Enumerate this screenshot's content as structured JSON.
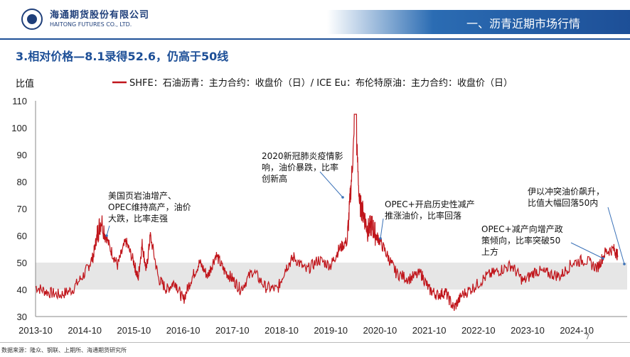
{
  "header": {
    "company_cn": "海通期货股份有限公司",
    "company_en": "HAITONG FUTURES CO., LTD.",
    "section_title": "一、沥青近期市场行情"
  },
  "page_title": "3.相对价格—8.1录得52.6，仍高于50线",
  "footer": {
    "source": "数据来源：隆众、钢联、上期所、海通期货研究所",
    "page_number": "7"
  },
  "colors": {
    "series": "#c0151b",
    "band": "#e6e6e6",
    "brand": "#1d4f97"
  },
  "chart_data": {
    "type": "line",
    "ylabel": "比值",
    "ylim": [
      30,
      110
    ],
    "yticks": [
      30,
      40,
      50,
      60,
      70,
      80,
      90,
      100,
      110
    ],
    "xticks": [
      "2013-10",
      "2014-10",
      "2015-10",
      "2016-10",
      "2017-10",
      "2018-10",
      "2019-10",
      "2020-10",
      "2021-10",
      "2022-10",
      "2023-10",
      "2024-10"
    ],
    "band": [
      40,
      50
    ],
    "grid": false,
    "legend_position": "top",
    "series": [
      {
        "name": "SHFE：石油沥青：主力合约：收盘价（日）/ ICE Eu：布伦特原油：主力合约：收盘价（日）",
        "points": [
          [
            "2013-10",
            41
          ],
          [
            "2014-01",
            39
          ],
          [
            "2014-04",
            38
          ],
          [
            "2014-07",
            40
          ],
          [
            "2014-10",
            46
          ],
          [
            "2014-12",
            52
          ],
          [
            "2015-01",
            60
          ],
          [
            "2015-02",
            66
          ],
          [
            "2015-04",
            56
          ],
          [
            "2015-06",
            49
          ],
          [
            "2015-08",
            58
          ],
          [
            "2015-10",
            50
          ],
          [
            "2015-11",
            44
          ],
          [
            "2015-12",
            57
          ],
          [
            "2016-01",
            47
          ],
          [
            "2016-02",
            60
          ],
          [
            "2016-04",
            44
          ],
          [
            "2016-06",
            40
          ],
          [
            "2016-08",
            43
          ],
          [
            "2016-10",
            36
          ],
          [
            "2016-12",
            44
          ],
          [
            "2017-02",
            50
          ],
          [
            "2017-04",
            45
          ],
          [
            "2017-06",
            53
          ],
          [
            "2017-08",
            47
          ],
          [
            "2017-10",
            44
          ],
          [
            "2017-12",
            40
          ],
          [
            "2018-03",
            47
          ],
          [
            "2018-06",
            41
          ],
          [
            "2018-09",
            40
          ],
          [
            "2018-11",
            48
          ],
          [
            "2019-01",
            52
          ],
          [
            "2019-04",
            47
          ],
          [
            "2019-07",
            51
          ],
          [
            "2019-10",
            49
          ],
          [
            "2019-12",
            55
          ],
          [
            "2020-02",
            58
          ],
          [
            "2020-03",
            80
          ],
          [
            "2020-04",
            104
          ],
          [
            "2020-05",
            72
          ],
          [
            "2020-06",
            68
          ],
          [
            "2020-07",
            62
          ],
          [
            "2020-08",
            64
          ],
          [
            "2020-09",
            60
          ],
          [
            "2020-10",
            58
          ],
          [
            "2020-12",
            52
          ],
          [
            "2021-02",
            46
          ],
          [
            "2021-05",
            44
          ],
          [
            "2021-08",
            46
          ],
          [
            "2021-10",
            40
          ],
          [
            "2021-12",
            38
          ],
          [
            "2022-02",
            39
          ],
          [
            "2022-04",
            33
          ],
          [
            "2022-06",
            38
          ],
          [
            "2022-09",
            41
          ],
          [
            "2022-12",
            45
          ],
          [
            "2023-03",
            47
          ],
          [
            "2023-06",
            49
          ],
          [
            "2023-09",
            43
          ],
          [
            "2023-12",
            47
          ],
          [
            "2024-03",
            46
          ],
          [
            "2024-06",
            45
          ],
          [
            "2024-09",
            50
          ],
          [
            "2024-12",
            51
          ],
          [
            "2025-03",
            48
          ],
          [
            "2025-05",
            54
          ],
          [
            "2025-07",
            55
          ],
          [
            "2025-08",
            52.6
          ]
        ]
      }
    ],
    "annotations": [
      {
        "lines": [
          "美国页岩油增产、",
          "OPEC维持高产，油价",
          "大跌，比率走强"
        ],
        "x": "2015-03",
        "y": 58
      },
      {
        "lines": [
          "2020新冠肺炎疫情影",
          "响，油价暴跌，比率",
          "创新高"
        ],
        "x": "2020-01",
        "y": 82
      },
      {
        "lines": [
          "OPEC+开启历史性减产",
          "推涨油价，比率回落"
        ],
        "x": "2020-07",
        "y": 62
      },
      {
        "lines": [
          "伊以冲突油价飙升，",
          "比值大幅回落50内"
        ],
        "x": "2025-08",
        "y": 50
      },
      {
        "lines": [
          "OPEC+减产向增产政",
          "策倾向，比率突破50",
          "上方"
        ],
        "x": "2024-11",
        "y": 51
      }
    ]
  }
}
